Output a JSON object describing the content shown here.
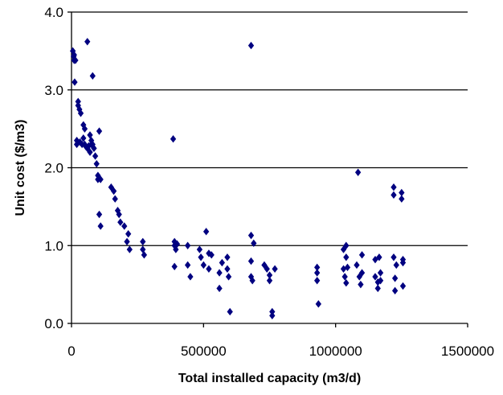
{
  "chart_data": {
    "type": "scatter",
    "title": "",
    "xlabel": "Total installed capacity (m3/d)",
    "ylabel": "Unit cost ($/m3)",
    "xlim": [
      0,
      1500000
    ],
    "ylim": [
      0.0,
      4.0
    ],
    "x_ticks": [
      0,
      500000,
      1000000,
      1500000
    ],
    "x_tick_labels": [
      "0",
      "500000",
      "1000000",
      "1500000"
    ],
    "y_ticks": [
      0.0,
      1.0,
      2.0,
      3.0,
      4.0
    ],
    "y_tick_labels": [
      "0.0",
      "1.0",
      "2.0",
      "3.0",
      "4.0"
    ],
    "grid": "horizontal",
    "legend": "none",
    "marker": "diamond",
    "marker_color": "#000080",
    "series": [
      {
        "x": [
          5000,
          8000,
          10000,
          12000,
          20000,
          25000,
          30000,
          35000,
          32000,
          40000,
          45000,
          50000,
          55000,
          60000,
          65000,
          70000,
          75000,
          80000,
          85000,
          90000,
          95000,
          100000,
          100000,
          105000,
          110000,
          105000,
          110000,
          150000,
          160000,
          165000,
          175000,
          180000,
          185000,
          200000,
          210000,
          215000,
          220000,
          270000,
          270000,
          275000,
          390000,
          390000,
          390000,
          395000,
          400000,
          440000,
          440000,
          450000,
          485000,
          490000,
          500000,
          510000,
          520000,
          520000,
          530000,
          560000,
          560000,
          570000,
          590000,
          590000,
          595000,
          600000,
          680000,
          680000,
          680000,
          685000,
          690000,
          730000,
          740000,
          750000,
          750000,
          760000,
          760000,
          770000,
          930000,
          930000,
          930000,
          935000,
          1030000,
          1030000,
          1035000,
          1040000,
          1040000,
          1040000,
          1045000,
          1080000,
          1090000,
          1095000,
          1100000,
          1100000,
          1150000,
          1150000,
          1160000,
          1160000,
          1165000,
          1170000,
          1170000,
          1220000,
          1220000,
          1220000,
          1225000,
          1225000,
          1230000,
          1250000,
          1250000,
          1255000,
          1255000,
          1255000,
          60000,
          80000,
          385000,
          680000,
          1085000,
          10000,
          15000,
          20000,
          25000,
          45000,
          50000,
          70000,
          75000
        ],
        "y": [
          3.5,
          3.43,
          3.38,
          3.1,
          2.3,
          2.85,
          2.75,
          2.7,
          2.33,
          2.3,
          2.55,
          2.5,
          2.27,
          2.25,
          2.28,
          2.2,
          2.35,
          2.3,
          2.25,
          2.15,
          2.05,
          1.9,
          1.85,
          1.4,
          1.25,
          2.47,
          1.85,
          1.75,
          1.7,
          1.6,
          1.45,
          1.4,
          1.3,
          1.25,
          1.05,
          1.15,
          0.95,
          1.05,
          0.95,
          0.88,
          1.05,
          1.0,
          0.73,
          0.95,
          1.02,
          1.0,
          0.75,
          0.6,
          0.95,
          0.85,
          0.75,
          1.18,
          0.9,
          0.7,
          0.88,
          0.65,
          0.45,
          0.78,
          0.85,
          0.7,
          0.6,
          0.15,
          1.13,
          0.8,
          0.6,
          0.55,
          1.03,
          0.75,
          0.7,
          0.62,
          0.55,
          0.15,
          0.1,
          0.7,
          0.72,
          0.65,
          0.55,
          0.25,
          0.95,
          0.7,
          0.6,
          0.52,
          0.85,
          1.0,
          0.72,
          0.75,
          0.6,
          0.5,
          0.88,
          0.65,
          0.82,
          0.6,
          0.53,
          0.45,
          0.85,
          0.65,
          0.55,
          1.75,
          1.65,
          0.85,
          0.58,
          0.42,
          0.75,
          1.68,
          1.6,
          0.82,
          0.78,
          0.48,
          3.62,
          3.18,
          2.37,
          3.57,
          1.94,
          3.45,
          3.38,
          2.35,
          2.8,
          2.38,
          2.3,
          2.42,
          2.3
        ]
      }
    ]
  }
}
